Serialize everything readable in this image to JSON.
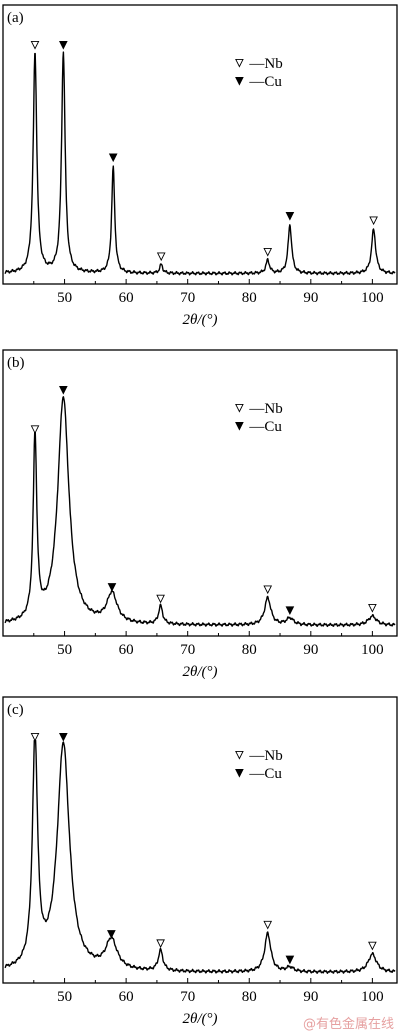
{
  "figure": {
    "watermark": "@有色金属在线",
    "colors": {
      "line": "#000000",
      "background": "#ffffff",
      "watermark": "#e6a0a0"
    }
  },
  "chart_data": [
    {
      "type": "line",
      "panel_label": "(a)",
      "xlabel": "2θ/(°)",
      "xlim": [
        40,
        104
      ],
      "xticks": [
        50,
        60,
        70,
        80,
        90,
        100
      ],
      "ylim": [
        0,
        1
      ],
      "y_ticks_shown": false,
      "legend": {
        "position": "top-right",
        "items": [
          {
            "marker": "open-triangle-down",
            "label": "—Nb"
          },
          {
            "marker": "filled-triangle-down",
            "label": "—Cu"
          }
        ]
      },
      "baseline": 0.02,
      "peaks": [
        {
          "x": 45.2,
          "y": 1.0,
          "phase": "Nb",
          "width": 0.35
        },
        {
          "x": 49.8,
          "y": 1.0,
          "phase": "Cu",
          "width": 0.35
        },
        {
          "x": 57.9,
          "y": 0.48,
          "phase": "Cu",
          "width": 0.3
        },
        {
          "x": 65.7,
          "y": 0.04,
          "phase": "Nb",
          "width": 0.3
        },
        {
          "x": 83.0,
          "y": 0.06,
          "phase": "Nb",
          "width": 0.35
        },
        {
          "x": 86.6,
          "y": 0.22,
          "phase": "Cu",
          "width": 0.35
        },
        {
          "x": 100.2,
          "y": 0.2,
          "phase": "Nb",
          "width": 0.4
        }
      ]
    },
    {
      "type": "line",
      "panel_label": "(b)",
      "xlabel": "2θ/(°)",
      "xlim": [
        40,
        104
      ],
      "xticks": [
        50,
        60,
        70,
        80,
        90,
        100
      ],
      "ylim": [
        0,
        1
      ],
      "y_ticks_shown": false,
      "legend": {
        "position": "top-right",
        "items": [
          {
            "marker": "open-triangle-down",
            "label": "—Nb"
          },
          {
            "marker": "filled-triangle-down",
            "label": "—Cu"
          }
        ]
      },
      "baseline": 0.02,
      "peaks": [
        {
          "x": 45.2,
          "y": 0.81,
          "phase": "Nb",
          "width": 0.35
        },
        {
          "x": 49.8,
          "y": 1.0,
          "phase": "Cu",
          "width": 1.1
        },
        {
          "x": 57.7,
          "y": 0.13,
          "phase": "Cu",
          "width": 1.0
        },
        {
          "x": 65.6,
          "y": 0.08,
          "phase": "Nb",
          "width": 0.4
        },
        {
          "x": 83.0,
          "y": 0.12,
          "phase": "Nb",
          "width": 0.6
        },
        {
          "x": 86.6,
          "y": 0.03,
          "phase": "Cu",
          "width": 0.7
        },
        {
          "x": 100.0,
          "y": 0.04,
          "phase": "Nb",
          "width": 0.8
        }
      ]
    },
    {
      "type": "line",
      "panel_label": "(c)",
      "xlabel": "2θ/(°)",
      "xlim": [
        40,
        104
      ],
      "xticks": [
        50,
        60,
        70,
        80,
        90,
        100
      ],
      "ylim": [
        0,
        1
      ],
      "y_ticks_shown": false,
      "legend": {
        "position": "top-right",
        "items": [
          {
            "marker": "open-triangle-down",
            "label": "—Nb"
          },
          {
            "marker": "filled-triangle-down",
            "label": "—Cu"
          }
        ]
      },
      "baseline": 0.02,
      "peaks": [
        {
          "x": 45.2,
          "y": 1.0,
          "phase": "Nb",
          "width": 0.5
        },
        {
          "x": 49.8,
          "y": 1.0,
          "phase": "Cu",
          "width": 1.2
        },
        {
          "x": 57.6,
          "y": 0.13,
          "phase": "Cu",
          "width": 1.1
        },
        {
          "x": 65.6,
          "y": 0.09,
          "phase": "Nb",
          "width": 0.45
        },
        {
          "x": 83.0,
          "y": 0.17,
          "phase": "Nb",
          "width": 0.6
        },
        {
          "x": 86.6,
          "y": 0.02,
          "phase": "Cu",
          "width": 0.7
        },
        {
          "x": 100.0,
          "y": 0.08,
          "phase": "Nb",
          "width": 0.8
        }
      ]
    }
  ]
}
